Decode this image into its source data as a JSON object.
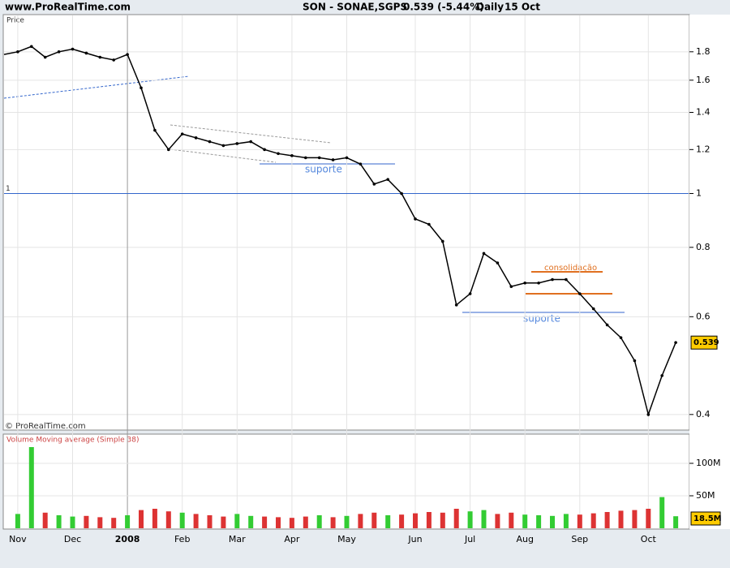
{
  "header": {
    "site": "www.ProRealTime.com",
    "symbol": "SON - SONAE,SGPS",
    "quote": "0.539 (-5.44%)",
    "period": "Daily",
    "date": "15 Oct"
  },
  "chart_data": [
    {
      "type": "line",
      "title": "Price",
      "credit": "© ProRealTime.com",
      "log_scale": true,
      "grid": true,
      "categories": [
        "Nov",
        null,
        null,
        null,
        "Dec",
        null,
        null,
        null,
        "2008",
        null,
        null,
        null,
        "Feb",
        null,
        null,
        null,
        "Mar",
        null,
        null,
        null,
        "Apr",
        null,
        null,
        null,
        "May",
        null,
        null,
        null,
        null,
        "Jun",
        null,
        null,
        null,
        "Jul",
        null,
        null,
        null,
        "Aug",
        null,
        null,
        null,
        "Sep",
        null,
        null,
        null,
        null,
        "Oct",
        null,
        null
      ],
      "x_start": [
        1.78
      ],
      "series": [
        {
          "name": "SON",
          "color": "#000000",
          "values": [
            1.8,
            1.84,
            1.76,
            1.8,
            1.82,
            1.79,
            1.76,
            1.74,
            1.78,
            1.55,
            1.3,
            1.2,
            1.28,
            1.26,
            1.24,
            1.22,
            1.23,
            1.24,
            1.2,
            1.18,
            1.17,
            1.16,
            1.16,
            1.15,
            1.16,
            1.13,
            1.04,
            1.06,
            1.0,
            0.9,
            0.88,
            0.82,
            0.63,
            0.66,
            0.78,
            0.75,
            0.68,
            0.69,
            0.69,
            0.7,
            0.7,
            0.66,
            0.62,
            0.58,
            0.55,
            0.5,
            0.4,
            0.47,
            0.539
          ]
        }
      ],
      "ylim": [
        0.375,
        2.1
      ],
      "yticks": [
        0.4,
        0.6,
        0.8,
        1,
        1.2,
        1.4,
        1.6,
        1.8
      ],
      "hline": 1,
      "annotations": [
        "suporte",
        "suporte",
        "consolidação"
      ]
    },
    {
      "type": "bar",
      "title": "Volume Moving average (Simple 38)",
      "volume_label": "18.5M",
      "series": [
        {
          "name": "Volume",
          "color": "#33cc33",
          "down_color": "#dd3333",
          "values": [
            22,
            125,
            24,
            20,
            18,
            19,
            17,
            16,
            20,
            28,
            30,
            26,
            24,
            22,
            20,
            18,
            22,
            19,
            18,
            17,
            16,
            18,
            20,
            17,
            19,
            22,
            24,
            20,
            21,
            23,
            25,
            24,
            30,
            26,
            28,
            22,
            24,
            21,
            20,
            19,
            22,
            21,
            23,
            25,
            27,
            28,
            30,
            48,
            18.5
          ]
        }
      ],
      "ylim": [
        0,
        145
      ],
      "yticks": [
        {
          "value": 50,
          "label": "50M"
        },
        {
          "value": 100,
          "label": "100M"
        }
      ]
    }
  ]
}
